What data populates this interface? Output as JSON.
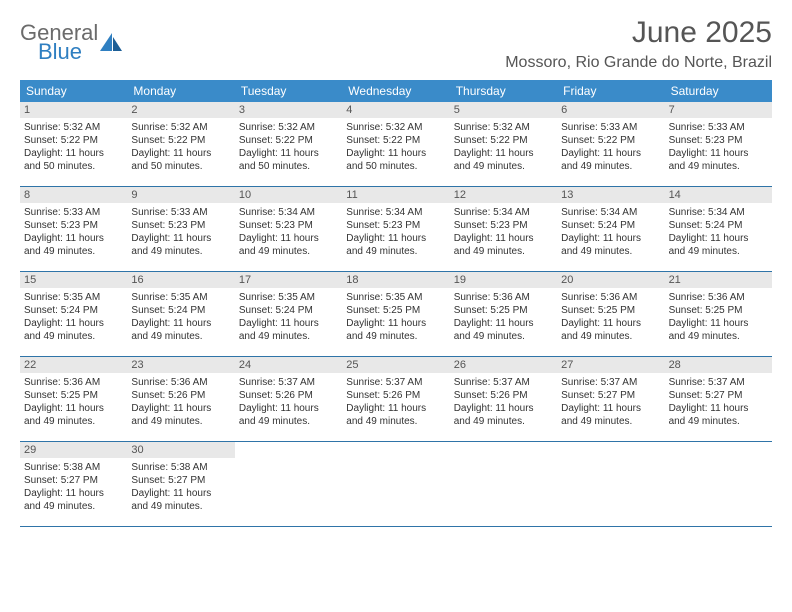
{
  "logo": {
    "line1": "General",
    "line2": "Blue"
  },
  "title": "June 2025",
  "location": "Mossoro, Rio Grande do Norte, Brazil",
  "colors": {
    "header_bg": "#3a8bc9",
    "header_text": "#ffffff",
    "daynum_bg": "#e8e8e8",
    "row_border": "#2f74a8",
    "logo_gray": "#6b6b6b",
    "logo_blue": "#2f7fc1"
  },
  "day_headers": [
    "Sunday",
    "Monday",
    "Tuesday",
    "Wednesday",
    "Thursday",
    "Friday",
    "Saturday"
  ],
  "weeks": [
    [
      {
        "n": "1",
        "sr": "Sunrise: 5:32 AM",
        "ss": "Sunset: 5:22 PM",
        "d1": "Daylight: 11 hours",
        "d2": "and 50 minutes."
      },
      {
        "n": "2",
        "sr": "Sunrise: 5:32 AM",
        "ss": "Sunset: 5:22 PM",
        "d1": "Daylight: 11 hours",
        "d2": "and 50 minutes."
      },
      {
        "n": "3",
        "sr": "Sunrise: 5:32 AM",
        "ss": "Sunset: 5:22 PM",
        "d1": "Daylight: 11 hours",
        "d2": "and 50 minutes."
      },
      {
        "n": "4",
        "sr": "Sunrise: 5:32 AM",
        "ss": "Sunset: 5:22 PM",
        "d1": "Daylight: 11 hours",
        "d2": "and 50 minutes."
      },
      {
        "n": "5",
        "sr": "Sunrise: 5:32 AM",
        "ss": "Sunset: 5:22 PM",
        "d1": "Daylight: 11 hours",
        "d2": "and 49 minutes."
      },
      {
        "n": "6",
        "sr": "Sunrise: 5:33 AM",
        "ss": "Sunset: 5:22 PM",
        "d1": "Daylight: 11 hours",
        "d2": "and 49 minutes."
      },
      {
        "n": "7",
        "sr": "Sunrise: 5:33 AM",
        "ss": "Sunset: 5:23 PM",
        "d1": "Daylight: 11 hours",
        "d2": "and 49 minutes."
      }
    ],
    [
      {
        "n": "8",
        "sr": "Sunrise: 5:33 AM",
        "ss": "Sunset: 5:23 PM",
        "d1": "Daylight: 11 hours",
        "d2": "and 49 minutes."
      },
      {
        "n": "9",
        "sr": "Sunrise: 5:33 AM",
        "ss": "Sunset: 5:23 PM",
        "d1": "Daylight: 11 hours",
        "d2": "and 49 minutes."
      },
      {
        "n": "10",
        "sr": "Sunrise: 5:34 AM",
        "ss": "Sunset: 5:23 PM",
        "d1": "Daylight: 11 hours",
        "d2": "and 49 minutes."
      },
      {
        "n": "11",
        "sr": "Sunrise: 5:34 AM",
        "ss": "Sunset: 5:23 PM",
        "d1": "Daylight: 11 hours",
        "d2": "and 49 minutes."
      },
      {
        "n": "12",
        "sr": "Sunrise: 5:34 AM",
        "ss": "Sunset: 5:23 PM",
        "d1": "Daylight: 11 hours",
        "d2": "and 49 minutes."
      },
      {
        "n": "13",
        "sr": "Sunrise: 5:34 AM",
        "ss": "Sunset: 5:24 PM",
        "d1": "Daylight: 11 hours",
        "d2": "and 49 minutes."
      },
      {
        "n": "14",
        "sr": "Sunrise: 5:34 AM",
        "ss": "Sunset: 5:24 PM",
        "d1": "Daylight: 11 hours",
        "d2": "and 49 minutes."
      }
    ],
    [
      {
        "n": "15",
        "sr": "Sunrise: 5:35 AM",
        "ss": "Sunset: 5:24 PM",
        "d1": "Daylight: 11 hours",
        "d2": "and 49 minutes."
      },
      {
        "n": "16",
        "sr": "Sunrise: 5:35 AM",
        "ss": "Sunset: 5:24 PM",
        "d1": "Daylight: 11 hours",
        "d2": "and 49 minutes."
      },
      {
        "n": "17",
        "sr": "Sunrise: 5:35 AM",
        "ss": "Sunset: 5:24 PM",
        "d1": "Daylight: 11 hours",
        "d2": "and 49 minutes."
      },
      {
        "n": "18",
        "sr": "Sunrise: 5:35 AM",
        "ss": "Sunset: 5:25 PM",
        "d1": "Daylight: 11 hours",
        "d2": "and 49 minutes."
      },
      {
        "n": "19",
        "sr": "Sunrise: 5:36 AM",
        "ss": "Sunset: 5:25 PM",
        "d1": "Daylight: 11 hours",
        "d2": "and 49 minutes."
      },
      {
        "n": "20",
        "sr": "Sunrise: 5:36 AM",
        "ss": "Sunset: 5:25 PM",
        "d1": "Daylight: 11 hours",
        "d2": "and 49 minutes."
      },
      {
        "n": "21",
        "sr": "Sunrise: 5:36 AM",
        "ss": "Sunset: 5:25 PM",
        "d1": "Daylight: 11 hours",
        "d2": "and 49 minutes."
      }
    ],
    [
      {
        "n": "22",
        "sr": "Sunrise: 5:36 AM",
        "ss": "Sunset: 5:25 PM",
        "d1": "Daylight: 11 hours",
        "d2": "and 49 minutes."
      },
      {
        "n": "23",
        "sr": "Sunrise: 5:36 AM",
        "ss": "Sunset: 5:26 PM",
        "d1": "Daylight: 11 hours",
        "d2": "and 49 minutes."
      },
      {
        "n": "24",
        "sr": "Sunrise: 5:37 AM",
        "ss": "Sunset: 5:26 PM",
        "d1": "Daylight: 11 hours",
        "d2": "and 49 minutes."
      },
      {
        "n": "25",
        "sr": "Sunrise: 5:37 AM",
        "ss": "Sunset: 5:26 PM",
        "d1": "Daylight: 11 hours",
        "d2": "and 49 minutes."
      },
      {
        "n": "26",
        "sr": "Sunrise: 5:37 AM",
        "ss": "Sunset: 5:26 PM",
        "d1": "Daylight: 11 hours",
        "d2": "and 49 minutes."
      },
      {
        "n": "27",
        "sr": "Sunrise: 5:37 AM",
        "ss": "Sunset: 5:27 PM",
        "d1": "Daylight: 11 hours",
        "d2": "and 49 minutes."
      },
      {
        "n": "28",
        "sr": "Sunrise: 5:37 AM",
        "ss": "Sunset: 5:27 PM",
        "d1": "Daylight: 11 hours",
        "d2": "and 49 minutes."
      }
    ],
    [
      {
        "n": "29",
        "sr": "Sunrise: 5:38 AM",
        "ss": "Sunset: 5:27 PM",
        "d1": "Daylight: 11 hours",
        "d2": "and 49 minutes."
      },
      {
        "n": "30",
        "sr": "Sunrise: 5:38 AM",
        "ss": "Sunset: 5:27 PM",
        "d1": "Daylight: 11 hours",
        "d2": "and 49 minutes."
      },
      null,
      null,
      null,
      null,
      null
    ]
  ]
}
